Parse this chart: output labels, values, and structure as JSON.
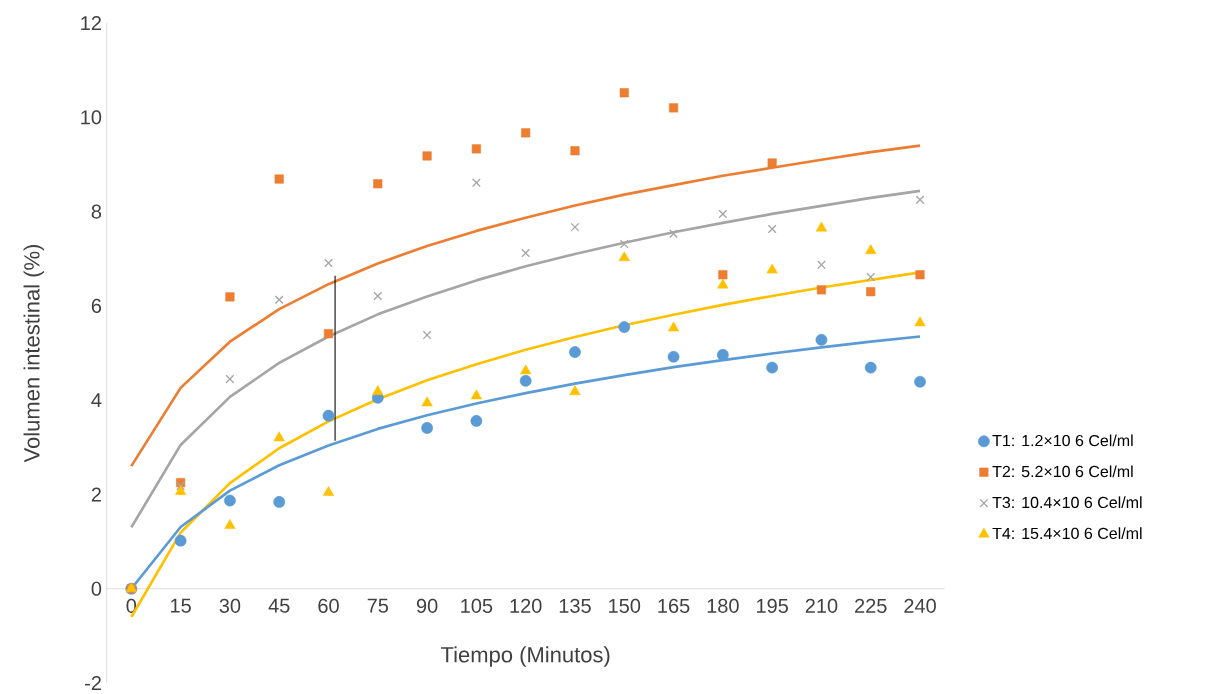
{
  "chart_data": {
    "type": "scatter",
    "xlabel": "Tiempo (Minutos)",
    "ylabel": "Volumen intestinal (%)",
    "x": [
      0,
      15,
      30,
      45,
      60,
      75,
      90,
      105,
      120,
      135,
      150,
      165,
      180,
      195,
      210,
      225,
      240
    ],
    "xlim": [
      -7.5,
      247.5
    ],
    "xticks": [
      0,
      15,
      30,
      45,
      60,
      75,
      90,
      105,
      120,
      135,
      150,
      165,
      180,
      195,
      210,
      225,
      240
    ],
    "ylim": [
      -2,
      12
    ],
    "yticks": [
      -2,
      0,
      2,
      4,
      6,
      8,
      10,
      12
    ],
    "legend": "right",
    "grid": false,
    "series": [
      {
        "name": "T1: 1.2×10 6 Cel/ml",
        "color": "#5b9bd5",
        "marker": "circle",
        "values": [
          0,
          1.02,
          1.87,
          1.84,
          3.67,
          4.05,
          3.41,
          3.56,
          4.41,
          5.02,
          5.55,
          4.92,
          4.96,
          4.69,
          5.28,
          4.69,
          4.39
        ]
      },
      {
        "name": "T2: 5.2×10 6 Cel/ml",
        "color": "#ed7d31",
        "marker": "square",
        "values": [
          0,
          2.25,
          6.19,
          8.69,
          5.41,
          8.59,
          9.18,
          9.33,
          9.67,
          9.29,
          10.52,
          10.2,
          6.66,
          9.03,
          6.34,
          6.3,
          6.66
        ]
      },
      {
        "name": "T3: 10.4×10 6 Cel/ml",
        "color": "#a5a5a5",
        "marker": "cross",
        "values": [
          0,
          2.18,
          4.45,
          6.13,
          6.91,
          6.21,
          5.38,
          8.61,
          7.12,
          7.67,
          7.31,
          7.53,
          7.95,
          7.63,
          6.87,
          6.61,
          8.25
        ]
      },
      {
        "name": "T4: 15.4×10 6 Cel/ml",
        "color": "#ffc000",
        "marker": "triangle",
        "values": [
          0,
          2.06,
          1.34,
          3.2,
          2.04,
          4.18,
          3.94,
          4.09,
          4.62,
          4.18,
          7.02,
          5.53,
          6.44,
          6.76,
          7.65,
          7.17,
          5.64
        ]
      },
      {
        "type": "line",
        "color": "#ed7d31",
        "values": [
          2.6,
          4.26,
          5.24,
          5.93,
          6.46,
          6.9,
          7.27,
          7.59,
          7.87,
          8.13,
          8.36,
          8.56,
          8.76,
          8.93,
          9.1,
          9.26,
          9.4
        ]
      },
      {
        "type": "line",
        "color": "#a5a5a5",
        "values": [
          1.3,
          3.05,
          4.07,
          4.79,
          5.35,
          5.82,
          6.2,
          6.54,
          6.84,
          7.1,
          7.34,
          7.56,
          7.76,
          7.95,
          8.12,
          8.29,
          8.44
        ]
      },
      {
        "type": "line",
        "color": "#ffc000",
        "values": [
          -0.6,
          1.19,
          2.24,
          2.98,
          3.55,
          4.02,
          4.42,
          4.76,
          5.07,
          5.34,
          5.59,
          5.81,
          6.02,
          6.21,
          6.39,
          6.55,
          6.71
        ]
      },
      {
        "type": "line",
        "color": "#5b9bd5",
        "values": [
          0,
          1.31,
          2.08,
          2.62,
          3.04,
          3.39,
          3.68,
          3.93,
          4.15,
          4.35,
          4.53,
          4.7,
          4.85,
          4.99,
          5.12,
          5.24,
          5.35
        ]
      },
      {
        "type": "line",
        "color": "#000000",
        "x": [
          62,
          62
        ],
        "values": [
          6.64,
          3.14
        ]
      }
    ]
  }
}
